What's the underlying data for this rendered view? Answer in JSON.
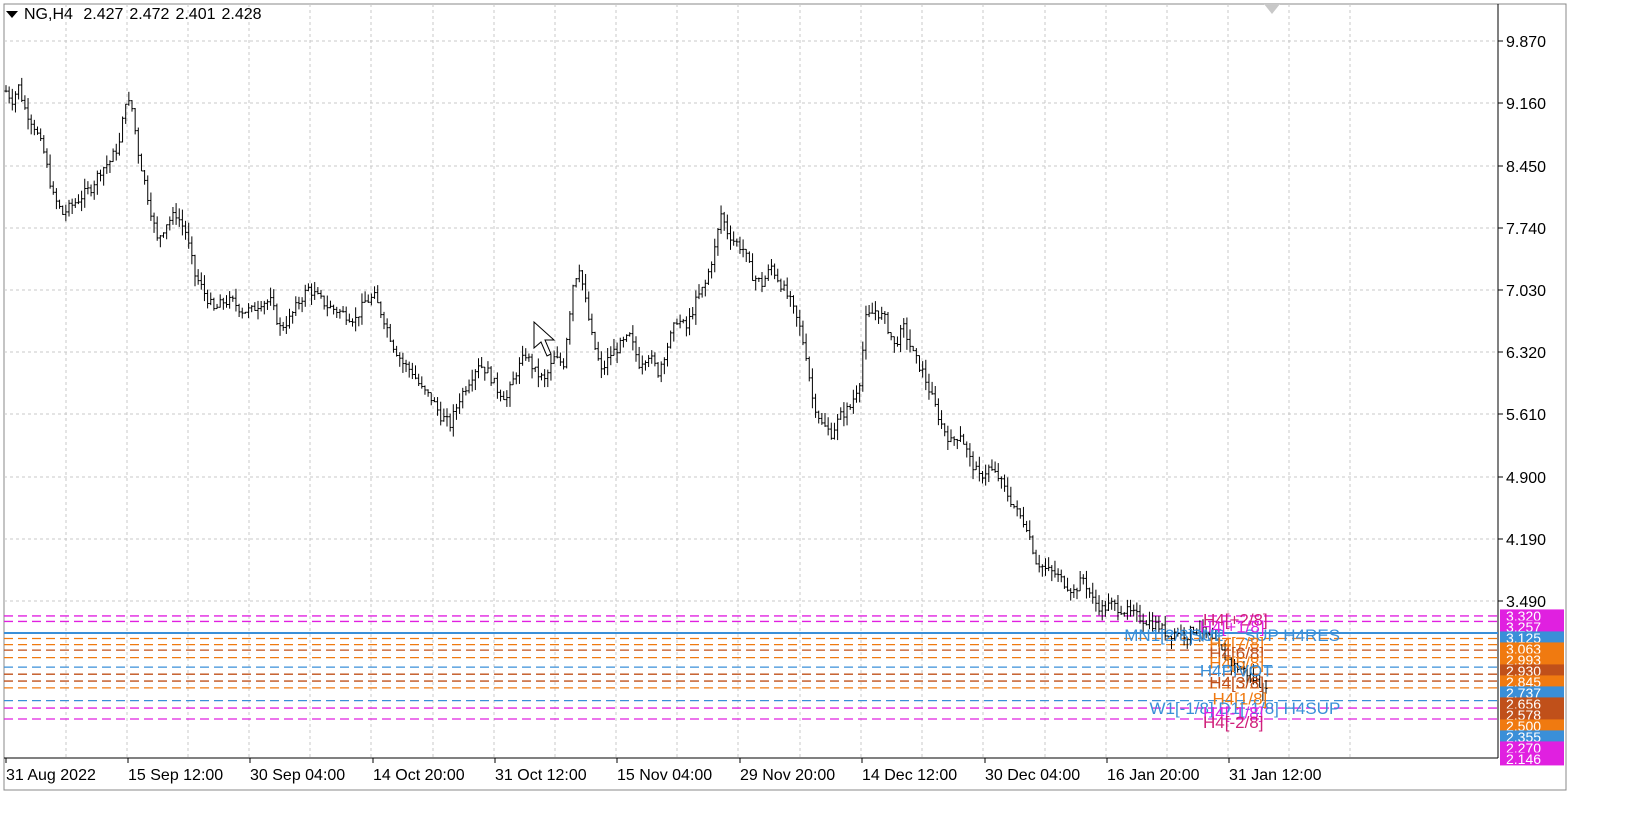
{
  "header": {
    "symbol_timeframe": "NG,H4",
    "open": "2.427",
    "high": "2.472",
    "low": "2.401",
    "close": "2.428"
  },
  "colors": {
    "background": "#ffffff",
    "grid": "#c0c0c0",
    "bars": "#000000",
    "magenta": "#e020e0",
    "pink": "#d0207a",
    "orange": "#f07a10",
    "dark_orange": "#c0501a",
    "blue": "#3a8fd8",
    "dodger": "#1e90ff"
  },
  "chart_data": {
    "type": "ohlc",
    "timeframe": "H4",
    "symbol": "NG",
    "y_ticks": [
      "9.870",
      "9.160",
      "8.450",
      "7.740",
      "7.030",
      "6.320",
      "5.610",
      "4.900",
      "4.190",
      "3.490"
    ],
    "x_ticks": [
      "31 Aug 2022",
      "15 Sep 12:00",
      "30 Sep 04:00",
      "14 Oct 20:00",
      "31 Oct 12:00",
      "15 Nov 04:00",
      "29 Nov 20:00",
      "14 Dec 12:00",
      "30 Dec 04:00",
      "16 Jan 20:00",
      "31 Jan 12:00"
    ],
    "ylim": [
      2.0,
      10.3
    ],
    "grid": true,
    "price_path": [
      [
        0,
        9.3
      ],
      [
        2,
        9.2
      ],
      [
        4,
        9.35
      ],
      [
        6,
        9.1
      ],
      [
        9,
        8.9
      ],
      [
        12,
        8.6
      ],
      [
        15,
        8.1
      ],
      [
        18,
        7.9
      ],
      [
        21,
        8.0
      ],
      [
        24,
        8.1
      ],
      [
        27,
        8.2
      ],
      [
        30,
        8.4
      ],
      [
        33,
        8.5
      ],
      [
        36,
        8.7
      ],
      [
        38,
        9.2
      ],
      [
        40,
        9.1
      ],
      [
        42,
        8.6
      ],
      [
        45,
        8.1
      ],
      [
        48,
        7.6
      ],
      [
        51,
        7.8
      ],
      [
        54,
        7.9
      ],
      [
        57,
        7.7
      ],
      [
        60,
        7.2
      ],
      [
        63,
        7.0
      ],
      [
        66,
        6.8
      ],
      [
        69,
        6.9
      ],
      [
        72,
        6.9
      ],
      [
        75,
        6.8
      ],
      [
        78,
        6.8
      ],
      [
        81,
        6.9
      ],
      [
        84,
        6.9
      ],
      [
        87,
        6.6
      ],
      [
        90,
        6.7
      ],
      [
        93,
        6.9
      ],
      [
        96,
        7.05
      ],
      [
        99,
        6.95
      ],
      [
        102,
        6.85
      ],
      [
        105,
        6.8
      ],
      [
        108,
        6.75
      ],
      [
        111,
        6.7
      ],
      [
        114,
        6.9
      ],
      [
        117,
        6.95
      ],
      [
        120,
        6.7
      ],
      [
        123,
        6.4
      ],
      [
        126,
        6.2
      ],
      [
        129,
        6.1
      ],
      [
        132,
        5.9
      ],
      [
        135,
        5.8
      ],
      [
        138,
        5.6
      ],
      [
        141,
        5.5
      ],
      [
        144,
        5.8
      ],
      [
        147,
        6.0
      ],
      [
        150,
        6.2
      ],
      [
        153,
        6.1
      ],
      [
        156,
        5.9
      ],
      [
        159,
        5.8
      ],
      [
        162,
        6.1
      ],
      [
        165,
        6.3
      ],
      [
        168,
        6.1
      ],
      [
        171,
        6.0
      ],
      [
        174,
        6.25
      ],
      [
        177,
        6.2
      ],
      [
        180,
        7.1
      ],
      [
        182,
        7.3
      ],
      [
        184,
        6.9
      ],
      [
        186,
        6.5
      ],
      [
        189,
        6.1
      ],
      [
        192,
        6.3
      ],
      [
        195,
        6.4
      ],
      [
        198,
        6.5
      ],
      [
        201,
        6.2
      ],
      [
        204,
        6.3
      ],
      [
        207,
        6.1
      ],
      [
        210,
        6.4
      ],
      [
        213,
        6.7
      ],
      [
        216,
        6.6
      ],
      [
        219,
        6.9
      ],
      [
        222,
        7.1
      ],
      [
        225,
        7.5
      ],
      [
        227,
        7.9
      ],
      [
        229,
        7.7
      ],
      [
        231,
        7.6
      ],
      [
        234,
        7.5
      ],
      [
        237,
        7.2
      ],
      [
        240,
        7.1
      ],
      [
        243,
        7.3
      ],
      [
        246,
        7.1
      ],
      [
        249,
        6.9
      ],
      [
        252,
        6.6
      ],
      [
        254,
        6.3
      ],
      [
        256,
        5.8
      ],
      [
        259,
        5.5
      ],
      [
        262,
        5.4
      ],
      [
        265,
        5.6
      ],
      [
        268,
        5.7
      ],
      [
        271,
        6.0
      ],
      [
        273,
        6.7
      ],
      [
        276,
        6.8
      ],
      [
        279,
        6.7
      ],
      [
        282,
        6.4
      ],
      [
        285,
        6.6
      ],
      [
        288,
        6.3
      ],
      [
        291,
        6.1
      ],
      [
        294,
        5.8
      ],
      [
        297,
        5.5
      ],
      [
        300,
        5.3
      ],
      [
        303,
        5.4
      ],
      [
        306,
        5.1
      ],
      [
        309,
        4.9
      ],
      [
        312,
        5.0
      ],
      [
        315,
        4.9
      ],
      [
        318,
        4.7
      ],
      [
        321,
        4.5
      ],
      [
        324,
        4.35
      ],
      [
        327,
        3.95
      ],
      [
        330,
        3.85
      ],
      [
        333,
        3.8
      ],
      [
        336,
        3.7
      ],
      [
        339,
        3.6
      ],
      [
        342,
        3.75
      ],
      [
        345,
        3.5
      ],
      [
        348,
        3.4
      ],
      [
        351,
        3.45
      ],
      [
        354,
        3.4
      ],
      [
        357,
        3.35
      ],
      [
        360,
        3.3
      ],
      [
        363,
        3.25
      ],
      [
        366,
        3.2
      ],
      [
        369,
        3.1
      ],
      [
        372,
        3.15
      ],
      [
        375,
        3.1
      ],
      [
        378,
        3.2
      ],
      [
        381,
        3.1
      ],
      [
        384,
        3.0
      ],
      [
        387,
        2.85
      ],
      [
        390,
        2.75
      ],
      [
        393,
        2.7
      ],
      [
        396,
        2.6
      ],
      [
        398,
        2.55
      ],
      [
        400,
        2.45
      ]
    ],
    "levels": [
      {
        "value": 3.32,
        "color": "#e020e0",
        "style": "dash",
        "axis_label": "3.320"
      },
      {
        "value": 3.257,
        "color": "#e020e0",
        "style": "dash",
        "axis_label": "3.257"
      },
      {
        "value": 3.125,
        "color": "#3a8fd8",
        "style": "solid",
        "axis_label": "3.125"
      },
      {
        "value": 3.063,
        "color": "#f07a10",
        "style": "dash",
        "axis_label": "3.063"
      },
      {
        "value": 2.993,
        "color": "#f07a10",
        "style": "dash",
        "axis_label": "2.993"
      },
      {
        "value": 2.93,
        "color": "#c0501a",
        "style": "dash",
        "axis_label": "2.930"
      },
      {
        "value": 2.845,
        "color": "#f07a10",
        "style": "dash",
        "axis_label": "2.845"
      },
      {
        "value": 2.737,
        "color": "#3a8fd8",
        "style": "dash",
        "axis_label": "2.737"
      },
      {
        "value": 2.656,
        "color": "#c0501a",
        "style": "dash",
        "axis_label": "2.656"
      },
      {
        "value": 2.578,
        "color": "#c0501a",
        "style": "dash",
        "axis_label": "2.578"
      },
      {
        "value": 2.5,
        "color": "#f07a10",
        "style": "dash",
        "axis_label": "2.500"
      },
      {
        "value": 2.355,
        "color": "#3a8fd8",
        "style": "dash",
        "axis_label": "2.355"
      },
      {
        "value": 2.27,
        "color": "#e020e0",
        "style": "dash",
        "axis_label": "2.270"
      },
      {
        "value": 2.146,
        "color": "#e020e0",
        "style": "dash",
        "axis_label": "2.146"
      }
    ],
    "annotations": [
      {
        "text": "H4[+2/8]",
        "color": "#d0207a",
        "x": 380,
        "y": 3.28
      },
      {
        "text": "MN1[2/8] W1",
        "color": "#3a8fd8",
        "x": 355,
        "y": 3.1
      },
      {
        "text": "SUP",
        "color": "#3a8fd8",
        "x": 376,
        "y": 3.1
      },
      {
        "text": "SUP H4RES",
        "color": "#3a8fd8",
        "x": 393,
        "y": 3.1
      },
      {
        "text": "H4[+1/8]",
        "color": "#e020e0",
        "x": 379,
        "y": 3.2
      },
      {
        "text": "H4[7/8]",
        "color": "#f07a10",
        "x": 382,
        "y": 3.01
      },
      {
        "text": "H4[6/8]",
        "color": "#c0501a",
        "x": 382,
        "y": 2.9
      },
      {
        "text": "H4[5/8]",
        "color": "#f07a10",
        "x": 382,
        "y": 2.79
      },
      {
        "text": "H4PIVOT",
        "color": "#3a8fd8",
        "x": 379,
        "y": 2.7
      },
      {
        "text": "H4[3/8]",
        "color": "#c0501a",
        "x": 382,
        "y": 2.56
      },
      {
        "text": "H4[1/8]",
        "color": "#f07a10",
        "x": 383,
        "y": 2.38
      },
      {
        "text": "W1[-1/8] D1[-1/8] H4SUP",
        "color": "#3a8fd8",
        "x": 363,
        "y": 2.27
      },
      {
        "text": "H4[-1/8]",
        "color": "#e020e0",
        "x": 380,
        "y": 2.22
      },
      {
        "text": "H4[-2/8]",
        "color": "#d0207a",
        "x": 380,
        "y": 2.11
      }
    ]
  }
}
